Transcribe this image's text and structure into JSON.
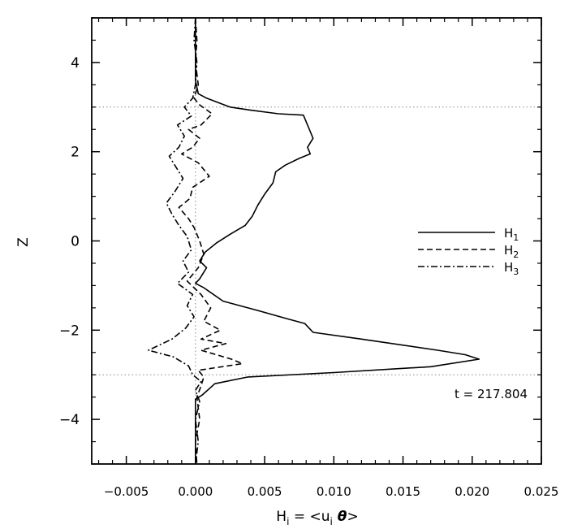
{
  "chart_data": {
    "type": "line",
    "title": "",
    "xlabel": "H<sub>i</sub> = <u<sub>i</sub> θ>",
    "xlabel_parts": {
      "base": "H",
      "sub1": "i",
      "mid": " = <u",
      "sub2": "i",
      "theta": " θ",
      "end": ">"
    },
    "ylabel": "Z",
    "xlim": [
      -0.0075,
      0.025
    ],
    "ylim": [
      -5,
      5
    ],
    "x_ticks": [
      -0.005,
      0.0,
      0.005,
      0.01,
      0.015,
      0.02,
      0.025
    ],
    "x_tick_labels": [
      "−0.005",
      "0.000",
      "0.005",
      "0.010",
      "0.015",
      "0.020",
      "0.025"
    ],
    "y_ticks": [
      -4,
      -2,
      0,
      2,
      4
    ],
    "y_tick_labels": [
      "−4",
      "−2",
      "0",
      "2",
      "4"
    ],
    "reference_lines": {
      "horizontal": [
        3,
        -3
      ],
      "vertical": [
        0
      ],
      "style": "dotted"
    },
    "annotation": "t = 217.804",
    "legend": {
      "placement": "right",
      "entries": [
        {
          "base": "H",
          "sub": "1",
          "style": "solid"
        },
        {
          "base": "H",
          "sub": "2",
          "style": "dashed"
        },
        {
          "base": "H",
          "sub": "3",
          "style": "dashdot"
        }
      ]
    },
    "series": [
      {
        "name": "H1",
        "style": "solid",
        "points": [
          [
            0.0,
            5.0
          ],
          [
            0.0,
            4.5
          ],
          [
            0.0,
            4.0
          ],
          [
            0.0,
            3.6
          ],
          [
            0.0002,
            3.3
          ],
          [
            0.0008,
            3.2
          ],
          [
            0.0025,
            3.0
          ],
          [
            0.004,
            2.93
          ],
          [
            0.006,
            2.85
          ],
          [
            0.0078,
            2.82
          ],
          [
            0.0081,
            2.6
          ],
          [
            0.0083,
            2.45
          ],
          [
            0.0085,
            2.3
          ],
          [
            0.0081,
            2.1
          ],
          [
            0.0083,
            1.95
          ],
          [
            0.0075,
            1.85
          ],
          [
            0.0065,
            1.7
          ],
          [
            0.0058,
            1.55
          ],
          [
            0.0056,
            1.3
          ],
          [
            0.005,
            1.05
          ],
          [
            0.0045,
            0.8
          ],
          [
            0.0041,
            0.55
          ],
          [
            0.0036,
            0.35
          ],
          [
            0.0025,
            0.15
          ],
          [
            0.0015,
            -0.05
          ],
          [
            0.0007,
            -0.25
          ],
          [
            0.0003,
            -0.45
          ],
          [
            0.0008,
            -0.6
          ],
          [
            0.0003,
            -0.85
          ],
          [
            0.0,
            -0.95
          ],
          [
            0.0006,
            -1.05
          ],
          [
            0.002,
            -1.35
          ],
          [
            0.0044,
            -1.55
          ],
          [
            0.0067,
            -1.75
          ],
          [
            0.0079,
            -1.85
          ],
          [
            0.0085,
            -2.05
          ],
          [
            0.012,
            -2.2
          ],
          [
            0.0175,
            -2.45
          ],
          [
            0.0195,
            -2.55
          ],
          [
            0.0205,
            -2.65
          ],
          [
            0.017,
            -2.82
          ],
          [
            0.01,
            -2.95
          ],
          [
            0.0038,
            -3.05
          ],
          [
            0.0014,
            -3.2
          ],
          [
            0.0005,
            -3.45
          ],
          [
            0.0,
            -3.55
          ],
          [
            0.0,
            -4.0
          ],
          [
            0.0,
            -4.5
          ],
          [
            0.0,
            -5.0
          ]
        ]
      },
      {
        "name": "H2",
        "style": "dashed",
        "points": [
          [
            0.0,
            5.0
          ],
          [
            0.0001,
            4.5
          ],
          [
            0.0,
            4.0
          ],
          [
            0.0002,
            3.5
          ],
          [
            -0.0001,
            3.2
          ],
          [
            0.0003,
            3.05
          ],
          [
            0.0012,
            2.85
          ],
          [
            0.0004,
            2.6
          ],
          [
            -0.0005,
            2.5
          ],
          [
            0.0003,
            2.3
          ],
          [
            -0.0002,
            2.1
          ],
          [
            -0.001,
            1.95
          ],
          [
            0.0002,
            1.75
          ],
          [
            0.001,
            1.45
          ],
          [
            -0.0002,
            1.2
          ],
          [
            -0.0004,
            0.95
          ],
          [
            -0.0012,
            0.75
          ],
          [
            -0.0005,
            0.5
          ],
          [
            -0.0001,
            0.3
          ],
          [
            0.0003,
            0.0
          ],
          [
            0.0006,
            -0.3
          ],
          [
            0.0002,
            -0.6
          ],
          [
            -0.0006,
            -0.9
          ],
          [
            0.0004,
            -1.2
          ],
          [
            0.0011,
            -1.5
          ],
          [
            0.0006,
            -1.8
          ],
          [
            0.0018,
            -2.0
          ],
          [
            0.0004,
            -2.2
          ],
          [
            0.0022,
            -2.3
          ],
          [
            0.0004,
            -2.45
          ],
          [
            0.0026,
            -2.65
          ],
          [
            0.0034,
            -2.75
          ],
          [
            0.0002,
            -2.9
          ],
          [
            0.0006,
            -3.05
          ],
          [
            0.0004,
            -3.25
          ],
          [
            0.0001,
            -3.5
          ],
          [
            0.0003,
            -4.0
          ],
          [
            0.0,
            -4.5
          ],
          [
            0.0001,
            -5.0
          ]
        ]
      },
      {
        "name": "H3",
        "style": "dashdot",
        "points": [
          [
            0.0,
            5.0
          ],
          [
            -0.0001,
            4.5
          ],
          [
            0.0001,
            4.0
          ],
          [
            0.0,
            3.5
          ],
          [
            -0.0002,
            3.2
          ],
          [
            -0.0008,
            3.0
          ],
          [
            -0.0003,
            2.8
          ],
          [
            -0.0013,
            2.6
          ],
          [
            -0.0008,
            2.35
          ],
          [
            -0.0012,
            2.1
          ],
          [
            -0.0019,
            1.9
          ],
          [
            -0.0014,
            1.65
          ],
          [
            -0.0009,
            1.4
          ],
          [
            -0.0015,
            1.1
          ],
          [
            -0.0021,
            0.85
          ],
          [
            -0.0017,
            0.6
          ],
          [
            -0.0012,
            0.35
          ],
          [
            -0.0006,
            0.1
          ],
          [
            -0.0003,
            -0.2
          ],
          [
            -0.0009,
            -0.45
          ],
          [
            -0.0005,
            -0.7
          ],
          [
            -0.0013,
            -0.95
          ],
          [
            -0.0002,
            -1.2
          ],
          [
            -0.0006,
            -1.45
          ],
          [
            -0.0001,
            -1.7
          ],
          [
            -0.0007,
            -1.95
          ],
          [
            -0.0017,
            -2.2
          ],
          [
            -0.0034,
            -2.45
          ],
          [
            -0.0016,
            -2.6
          ],
          [
            -0.0005,
            -2.8
          ],
          [
            -0.0002,
            -3.0
          ],
          [
            0.0004,
            -3.15
          ],
          [
            0.0,
            -3.35
          ],
          [
            0.0003,
            -3.6
          ],
          [
            0.0,
            -4.0
          ],
          [
            0.0002,
            -4.5
          ],
          [
            0.0,
            -5.0
          ]
        ]
      }
    ]
  }
}
